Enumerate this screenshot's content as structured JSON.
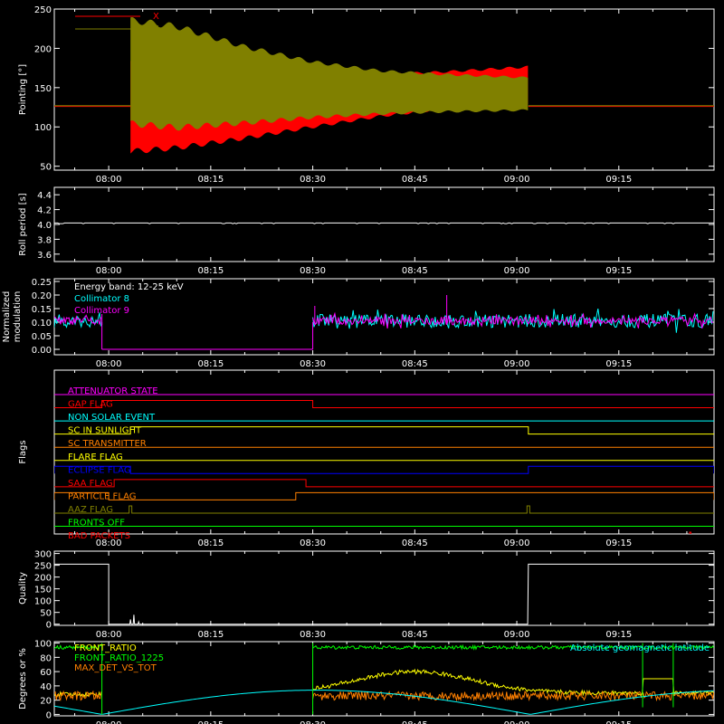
{
  "time_axis": {
    "ticks": [
      "08:00",
      "08:15",
      "08:30",
      "08:45",
      "09:00",
      "09:15"
    ],
    "tick_minutes": [
      480,
      495,
      510,
      525,
      540,
      555
    ],
    "range_minutes": [
      472,
      569
    ]
  },
  "chart_data": [
    {
      "type": "line",
      "ylabel": "Pointing [°]",
      "ylim": [
        45,
        250
      ],
      "yticks": [
        50,
        100,
        150,
        200,
        250
      ],
      "legend_placement": "top-left",
      "series": [
        {
          "name": "X",
          "color": "#ff0000",
          "baseline": 126,
          "start_minute": 483.2,
          "end_minute": 541.7,
          "envelope": [
            [
              483.2,
              65,
              190
            ],
            [
              490,
              70,
              182
            ],
            [
              500,
              83,
              172
            ],
            [
              510,
              98,
              167
            ],
            [
              520,
              112,
              168
            ],
            [
              530,
              122,
              172
            ],
            [
              541.7,
              126,
              178
            ]
          ]
        },
        {
          "name": "Y",
          "color": "#808000",
          "baseline": 127,
          "start_minute": 483.2,
          "end_minute": 541.7,
          "envelope": [
            [
              483.2,
              100,
              240
            ],
            [
              490,
              95,
              232
            ],
            [
              500,
              102,
              205
            ],
            [
              510,
              110,
              185
            ],
            [
              520,
              115,
              173
            ],
            [
              530,
              118,
              168
            ],
            [
              541.7,
              120,
              164
            ]
          ]
        }
      ]
    },
    {
      "type": "line",
      "ylabel": "Roll period [s]",
      "ylim": [
        3.5,
        4.5
      ],
      "yticks": [
        "3.6",
        "3.8",
        "4.0",
        "4.2",
        "4.4"
      ],
      "series": [
        {
          "name": "",
          "color": "#ffffff",
          "value": 4.02
        }
      ]
    },
    {
      "type": "line",
      "ylabel": "Normalized modulation",
      "ylabel_lines": [
        "Normalized",
        "modulation"
      ],
      "ylim": [
        -0.02,
        0.26
      ],
      "yticks": [
        "0.00",
        "0.05",
        "0.10",
        "0.15",
        "0.20",
        "0.25"
      ],
      "legend_title": "Energy band: 12-25 keV",
      "series": [
        {
          "name": "Collimator 8",
          "color": "#00ffff",
          "mean": 0.105,
          "spread": 0.025,
          "segments": [
            [
              472,
              479
            ],
            [
              510,
              569
            ]
          ]
        },
        {
          "name": "Collimator 9",
          "color": "#ff00ff",
          "mean": 0.105,
          "spread": 0.015,
          "segments": [
            [
              472,
              479
            ],
            [
              510,
              569
            ]
          ]
        }
      ],
      "zero_segment": [
        479,
        510
      ],
      "spikes": [
        [
          479,
          0.13
        ],
        [
          510.3,
          0.16
        ],
        [
          529.7,
          0.2
        ]
      ]
    },
    {
      "type": "line",
      "ylabel": "Flags",
      "series": [
        {
          "name": "ATTENUATOR STATE",
          "color": "#ff00ff",
          "on": []
        },
        {
          "name": "GAP FLAG",
          "color": "#ff0000",
          "on": [
            [
              479,
              510
            ]
          ]
        },
        {
          "name": "NON SOLAR EVENT",
          "color": "#00ffff",
          "on": []
        },
        {
          "name": "SC IN SUNLIGHT",
          "color": "#ffff00",
          "on": [
            [
              483.2,
              541.7
            ]
          ]
        },
        {
          "name": "SC TRANSMITTER",
          "color": "#ff8000",
          "on": []
        },
        {
          "name": "FLARE FLAG",
          "color": "#ffff00",
          "on": []
        },
        {
          "name": "ECLIPSE FLAG",
          "color": "#0000ff",
          "on": [
            [
              472,
              483.2
            ],
            [
              541.7,
              569
            ]
          ]
        },
        {
          "name": "SAA FLAG",
          "color": "#ff0000",
          "on": [
            [
              480.8,
              509
            ]
          ]
        },
        {
          "name": "PARTICLE FLAG",
          "color": "#ff8000",
          "on": [
            [
              472,
              480
            ],
            [
              507.5,
              569
            ]
          ]
        },
        {
          "name": "AAZ FLAG",
          "color": "#808000",
          "on": [
            [
              483,
              483.4
            ],
            [
              541.5,
              541.9
            ]
          ]
        },
        {
          "name": "FRONTS OFF",
          "color": "#00ff00",
          "on": []
        },
        {
          "name": "BAD PACKETS",
          "color": "#ff0000",
          "on": [
            [
              565.4,
              565.6
            ]
          ]
        }
      ]
    },
    {
      "type": "line",
      "ylabel": "Quality",
      "ylim": [
        -5,
        310
      ],
      "yticks": [
        0,
        50,
        100,
        150,
        200,
        250,
        300
      ],
      "series": [
        {
          "name": "",
          "color": "#ffffff",
          "points": [
            [
              472,
              255
            ],
            [
              480,
              255
            ],
            [
              480,
              0
            ],
            [
              483.1,
              0
            ],
            [
              483.2,
              20
            ],
            [
              483.3,
              0
            ],
            [
              483.6,
              0
            ],
            [
              483.7,
              40
            ],
            [
              483.8,
              0
            ],
            [
              484.3,
              0
            ],
            [
              484.4,
              10
            ],
            [
              484.5,
              0
            ],
            [
              541.6,
              0
            ],
            [
              541.7,
              255
            ],
            [
              569,
              255
            ]
          ]
        }
      ]
    },
    {
      "type": "line",
      "ylabel": "Degrees or %",
      "ylim": [
        -2,
        102
      ],
      "yticks": [
        0,
        20,
        40,
        60,
        80,
        100
      ],
      "series": [
        {
          "name": "FRONT_RATIO",
          "color": "#ffff00"
        },
        {
          "name": "FRONT_RATIO_1225",
          "color": "#00ff00"
        },
        {
          "name": "MAX_DET_VS_TOT",
          "color": "#ff8000"
        },
        {
          "name": "Absolute geomagnetic latitude",
          "color": "#00ffff",
          "legend_placement": "top-right"
        }
      ]
    }
  ]
}
